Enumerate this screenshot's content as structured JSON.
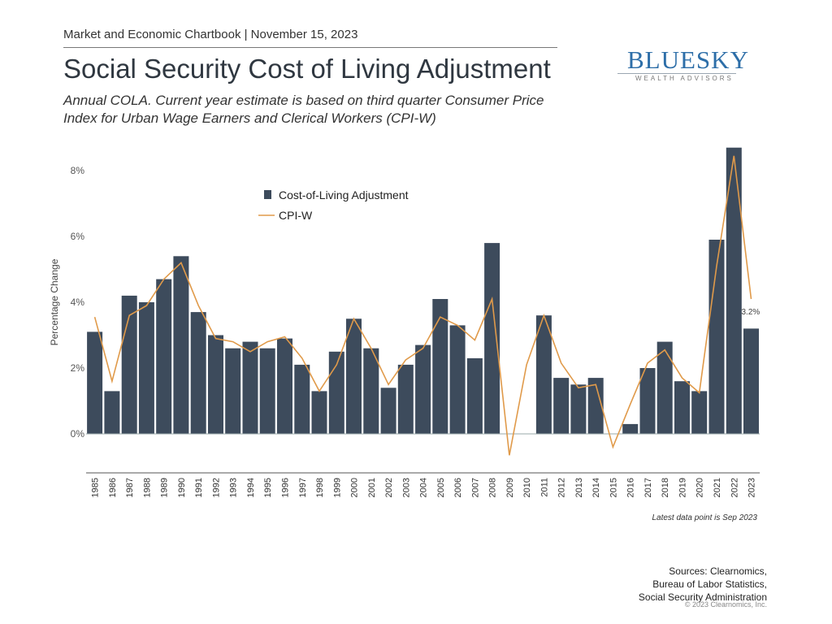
{
  "header": {
    "chartbook": "Market and Economic Chartbook | November 15, 2023",
    "title": "Social Security Cost of Living Adjustment",
    "subtitle_line1": "Annual COLA. Current year estimate is based on third quarter Consumer Price",
    "subtitle_line2": "Index for Urban Wage Earners and Clerical Workers (CPI-W)"
  },
  "logo": {
    "name": "BLUESKY",
    "tagline": "WEALTH ADVISORS",
    "color": "#2d6ea8"
  },
  "chart_data": {
    "type": "bar",
    "ylabel": "Percentage Change",
    "ylim": [
      -1.1,
      9.0
    ],
    "yticks": [
      0,
      2,
      4,
      6,
      8
    ],
    "ytick_labels": [
      "0%",
      "2%",
      "4%",
      "6%",
      "8%"
    ],
    "grid": false,
    "legend_position": "top-left",
    "categories": [
      "1985",
      "1986",
      "1987",
      "1988",
      "1989",
      "1990",
      "1991",
      "1992",
      "1993",
      "1994",
      "1995",
      "1996",
      "1997",
      "1998",
      "1999",
      "2000",
      "2001",
      "2002",
      "2003",
      "2004",
      "2005",
      "2006",
      "2007",
      "2008",
      "2009",
      "2010",
      "2011",
      "2012",
      "2013",
      "2014",
      "2015",
      "2016",
      "2017",
      "2018",
      "2019",
      "2020",
      "2021",
      "2022",
      "2023"
    ],
    "series": [
      {
        "name": "Cost-of-Living Adjustment",
        "kind": "bar",
        "color": "#3d4b5c",
        "values": [
          3.1,
          1.3,
          4.2,
          4.0,
          4.7,
          5.4,
          3.7,
          3.0,
          2.6,
          2.8,
          2.6,
          2.9,
          2.1,
          1.3,
          2.5,
          3.5,
          2.6,
          1.4,
          2.1,
          2.7,
          4.1,
          3.3,
          2.3,
          5.8,
          0,
          0,
          3.6,
          1.7,
          1.5,
          1.7,
          0,
          0.3,
          2.0,
          2.8,
          1.6,
          1.3,
          5.9,
          8.7,
          3.2
        ]
      },
      {
        "name": "CPI-W",
        "kind": "line",
        "color": "#e09a4a",
        "values": [
          3.55,
          1.6,
          3.6,
          3.9,
          4.7,
          5.2,
          3.9,
          2.9,
          2.8,
          2.5,
          2.8,
          2.95,
          2.3,
          1.3,
          2.1,
          3.5,
          2.6,
          1.5,
          2.25,
          2.6,
          3.55,
          3.3,
          2.85,
          4.1,
          -0.65,
          2.1,
          3.6,
          2.15,
          1.4,
          1.5,
          -0.4,
          0.9,
          2.15,
          2.55,
          1.7,
          1.25,
          5.1,
          8.45,
          4.1
        ]
      }
    ],
    "annotations": [
      {
        "category": "2023",
        "text": "3.2%"
      }
    ],
    "note": "Latest data point is Sep 2023"
  },
  "sources": {
    "line1": "Sources: Clearnomics,",
    "line2": "Bureau of Labor Statistics,",
    "line3": "Social Security Administration"
  },
  "copyright": "© 2023 Clearnomics, Inc."
}
